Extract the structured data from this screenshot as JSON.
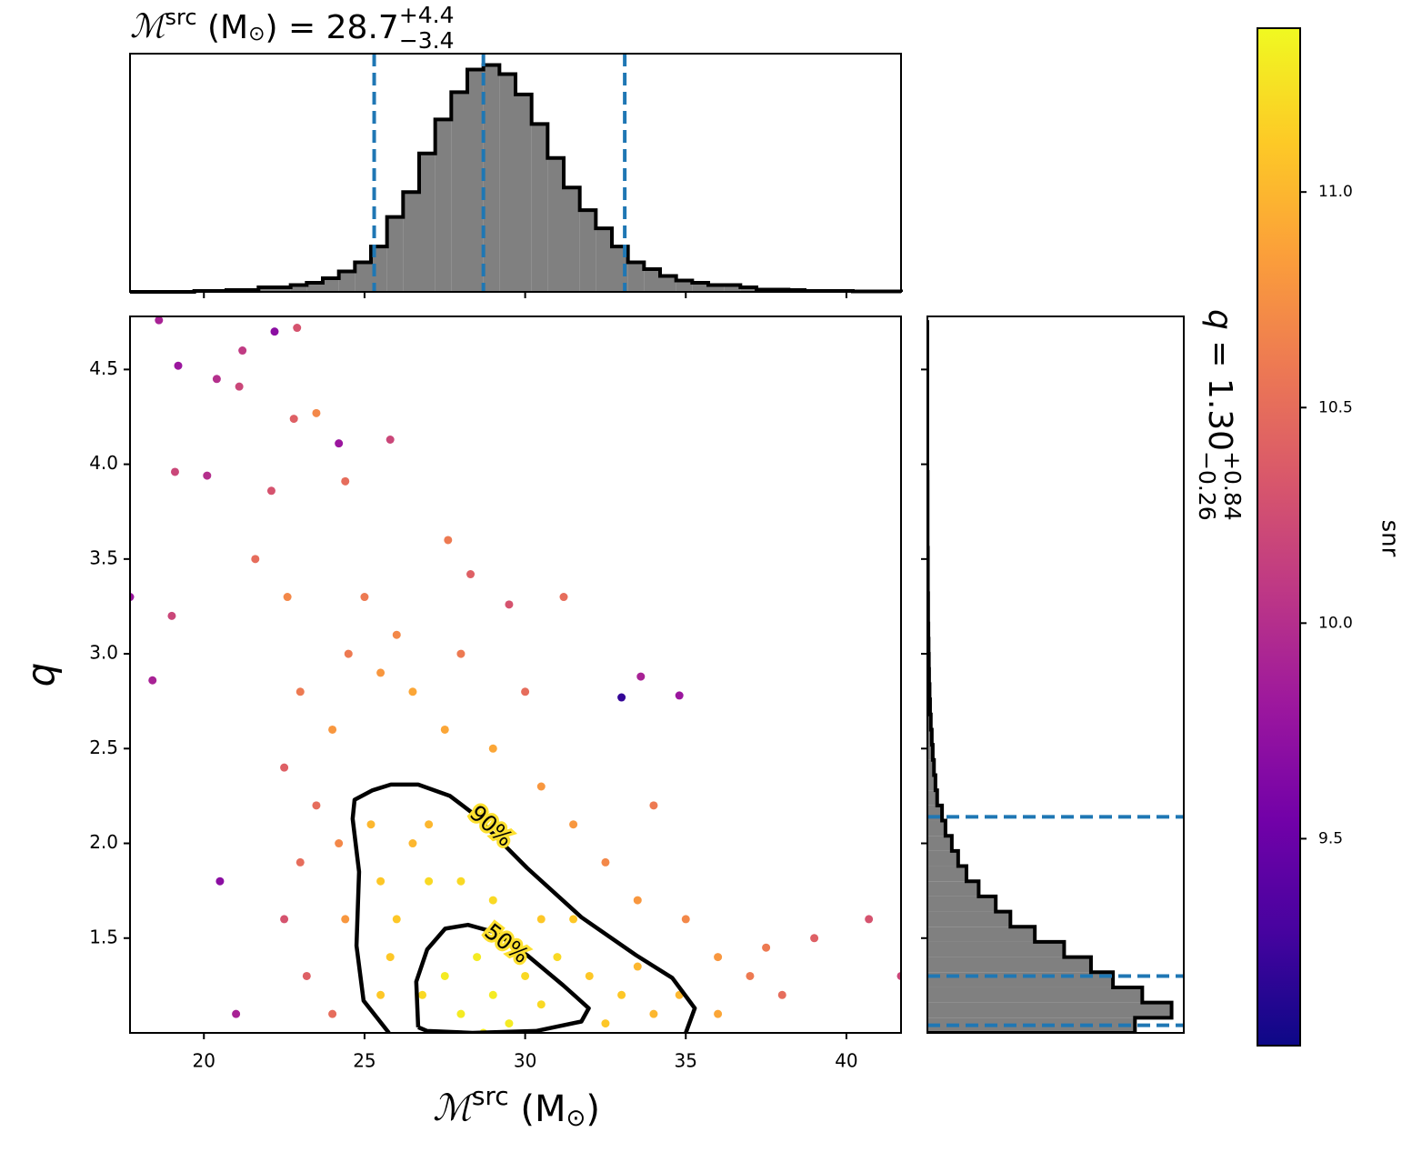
{
  "chart_data": [
    {
      "type": "histogram",
      "orientation": "vertical",
      "title": {
        "symbol": "ℳ",
        "sup": "src",
        "rest": " (M",
        "sun": "⊙",
        "value": ") = 28.7",
        "upper": "+4.4",
        "lower": "−3.4"
      },
      "bins": [
        17.7,
        18.2,
        18.7,
        19.2,
        19.7,
        20.2,
        20.7,
        21.2,
        21.7,
        22.2,
        22.7,
        23.2,
        23.7,
        24.2,
        24.7,
        25.2,
        25.7,
        26.2,
        26.7,
        27.2,
        27.7,
        28.2,
        28.7,
        29.2,
        29.7,
        30.2,
        30.7,
        31.2,
        31.7,
        32.2,
        32.7,
        33.2,
        33.7,
        34.2,
        34.7,
        35.2,
        35.7,
        36.2,
        36.7,
        37.2,
        37.7,
        38.2,
        38.7,
        39.2,
        39.7,
        40.2,
        40.7,
        41.2,
        41.7
      ],
      "counts": [
        0,
        0,
        0,
        0,
        0.004,
        0.004,
        0.008,
        0.008,
        0.02,
        0.02,
        0.03,
        0.04,
        0.06,
        0.09,
        0.13,
        0.2,
        0.33,
        0.44,
        0.61,
        0.76,
        0.88,
        0.98,
        1.0,
        0.96,
        0.87,
        0.74,
        0.59,
        0.46,
        0.36,
        0.28,
        0.2,
        0.13,
        0.1,
        0.07,
        0.05,
        0.04,
        0.03,
        0.03,
        0.02,
        0.01,
        0.01,
        0.008,
        0.004,
        0.004,
        0.004,
        0.002,
        0.002,
        0.002
      ],
      "color": "#808080",
      "edge_color": "#000000",
      "xlim": [
        17.7,
        41.7
      ],
      "ylim": [
        0,
        1.05
      ],
      "lines": [
        25.3,
        28.7,
        33.1
      ],
      "line_color": "#1f77b4"
    },
    {
      "type": "scatter",
      "xlabel": {
        "symbol": "ℳ",
        "sup": "src",
        "rest": " (M",
        "sun": "⊙",
        "end": ")"
      },
      "ylabel": "q",
      "xlim": [
        17.7,
        41.7
      ],
      "ylim": [
        1.0,
        4.78
      ],
      "xticks": [
        20,
        25,
        30,
        35,
        40
      ],
      "yticks": [
        1.5,
        {
          "value": 2,
          "label": "2.0"
        },
        2.5,
        {
          "value": 3,
          "label": "3.0"
        },
        3.5,
        {
          "value": 4,
          "label": "4.0"
        },
        4.5
      ],
      "x": [
        18.6,
        19.2,
        20.4,
        21.2,
        22.2,
        22.9,
        21.1,
        22.8,
        23.5,
        24.2,
        25.8,
        19.1,
        20.1,
        22.1,
        24.4,
        27.6,
        28.3,
        29.5,
        31.2,
        33.6,
        33.0,
        34.8,
        21.6,
        22.6,
        19.0,
        17.7,
        18.4,
        20.5,
        21.0,
        40.7,
        41.7,
        39.0,
        23.0,
        24.0,
        23.5,
        22.5,
        24.5,
        25.5,
        26.5,
        27.5,
        29,
        30.5,
        31.5,
        32.5,
        33.5,
        35,
        36,
        37,
        38,
        37.5,
        22.5,
        23.2,
        24.0,
        23.0,
        25.0,
        26,
        28,
        36,
        34,
        30,
        24.4,
        24.2,
        25.5,
        26,
        26.5,
        27,
        27.5,
        28,
        28.5,
        29,
        29.5,
        30,
        30.5,
        31,
        31.5,
        32,
        33,
        34,
        33.5,
        28,
        29,
        27,
        25.5,
        25.8,
        26.8,
        28.7,
        30.5,
        32.5,
        34.8,
        25.2
      ],
      "y": [
        4.76,
        4.52,
        4.45,
        4.6,
        4.7,
        4.72,
        4.41,
        4.24,
        4.27,
        4.11,
        4.13,
        3.96,
        3.94,
        3.86,
        3.91,
        3.6,
        3.42,
        3.26,
        3.3,
        2.88,
        2.77,
        2.78,
        3.5,
        3.3,
        3.2,
        3.3,
        2.86,
        1.8,
        1.1,
        1.6,
        1.3,
        1.5,
        2.8,
        2.6,
        2.2,
        2.4,
        3.0,
        2.9,
        2.8,
        2.6,
        2.5,
        2.3,
        2.1,
        1.9,
        1.7,
        1.6,
        1.4,
        1.3,
        1.2,
        1.45,
        1.6,
        1.3,
        1.1,
        1.9,
        3.3,
        3.1,
        3.0,
        1.1,
        2.2,
        2.8,
        1.6,
        2.0,
        1.2,
        1.6,
        2.0,
        1.8,
        1.3,
        1.1,
        1.4,
        1.2,
        1.05,
        1.3,
        1.15,
        1.4,
        1.6,
        1.3,
        1.2,
        1.1,
        1.35,
        1.8,
        1.7,
        2.1,
        1.8,
        1.4,
        1.2,
        1.0,
        1.6,
        1.05,
        1.2,
        2.1
      ],
      "c": [
        9.9,
        9.8,
        10.0,
        10.1,
        9.7,
        10.3,
        10.2,
        10.4,
        10.7,
        9.8,
        10.2,
        10.2,
        10.0,
        10.3,
        10.5,
        10.6,
        10.4,
        10.3,
        10.5,
        9.9,
        9.2,
        9.8,
        10.5,
        10.7,
        10.2,
        9.8,
        9.9,
        9.7,
        9.9,
        10.3,
        10.2,
        10.4,
        10.6,
        10.8,
        10.5,
        10.4,
        10.6,
        10.8,
        10.9,
        10.9,
        10.9,
        10.8,
        10.8,
        10.7,
        10.8,
        10.7,
        10.8,
        10.6,
        10.5,
        10.6,
        10.3,
        10.4,
        10.5,
        10.5,
        10.6,
        10.7,
        10.6,
        10.9,
        10.6,
        10.5,
        10.8,
        10.7,
        11.1,
        11.1,
        11.0,
        11.2,
        11.3,
        11.3,
        11.3,
        11.3,
        11.3,
        11.2,
        11.2,
        11.2,
        11.1,
        11.1,
        11.1,
        11.0,
        11.0,
        11.2,
        11.2,
        11.0,
        11.1,
        11.1,
        11.2,
        11.3,
        11.1,
        11.1,
        11.0,
        11.0
      ],
      "contours": [
        {
          "label": "90%",
          "x": [
            25.76,
            24.97,
            24.75,
            24.83,
            24.63,
            24.69,
            25.25,
            25.82,
            26.67,
            27.66,
            28.36,
            30.06,
            31.75,
            33.45,
            34.58,
            35.28,
            35.0
          ],
          "y": [
            1.0,
            1.17,
            1.46,
            1.85,
            2.13,
            2.23,
            2.28,
            2.31,
            2.31,
            2.25,
            2.16,
            1.87,
            1.61,
            1.41,
            1.29,
            1.13,
            1.0
          ]
        },
        {
          "label": "50%",
          "x": [
            26.67,
            26.61,
            26.95,
            27.51,
            28.22,
            29.07,
            30.06,
            31.19,
            31.98,
            31.75,
            30.34,
            28.36,
            26.95,
            26.67
          ],
          "y": [
            1.03,
            1.27,
            1.44,
            1.55,
            1.57,
            1.53,
            1.41,
            1.25,
            1.13,
            1.06,
            1.01,
            1.0,
            1.01,
            1.03
          ]
        }
      ],
      "colorbar": {
        "label": "snr",
        "clim": [
          9.02,
          11.38
        ],
        "ticks": [
          9.5,
          {
            "value": 10,
            "label": "10.0"
          },
          10.5,
          {
            "value": 11,
            "label": "11.0"
          }
        ],
        "colormap": "plasma"
      }
    },
    {
      "type": "histogram",
      "orientation": "horizontal",
      "title": {
        "symbol": "q",
        "value": " = 1.30",
        "upper": "+0.84",
        "lower": "−0.26"
      },
      "bins": [
        1.0,
        1.08,
        1.16,
        1.24,
        1.32,
        1.4,
        1.48,
        1.56,
        1.64,
        1.72,
        1.8,
        1.88,
        1.96,
        2.04,
        2.12,
        2.2,
        2.28,
        2.36,
        2.44,
        2.52,
        2.6,
        2.68,
        2.76,
        2.84,
        2.92,
        3.0,
        3.08,
        3.16,
        3.24,
        3.32,
        3.4,
        3.48,
        3.56,
        3.64,
        3.72,
        3.8,
        3.88,
        3.96,
        4.04,
        4.12,
        4.2,
        4.28,
        4.36,
        4.44,
        4.52,
        4.6,
        4.68,
        4.76
      ],
      "counts": [
        0.85,
        1.0,
        0.88,
        0.76,
        0.67,
        0.56,
        0.44,
        0.34,
        0.28,
        0.21,
        0.16,
        0.126,
        0.1,
        0.074,
        0.06,
        0.04,
        0.033,
        0.027,
        0.022,
        0.018,
        0.014,
        0.011,
        0.009,
        0.007,
        0.006,
        0.005,
        0.004,
        0.003,
        0.003,
        0.002,
        0.002,
        0.002,
        0.001,
        0.001,
        0.001,
        0.001,
        0.001,
        0,
        0,
        0,
        0,
        0,
        0,
        0,
        0,
        0,
        0
      ],
      "color": "#808080",
      "edge_color": "#000000",
      "xlim": [
        0,
        1.05
      ],
      "ylim": [
        1.0,
        4.78
      ],
      "lines": [
        1.04,
        1.3,
        2.14
      ],
      "line_color": "#1f77b4"
    }
  ]
}
